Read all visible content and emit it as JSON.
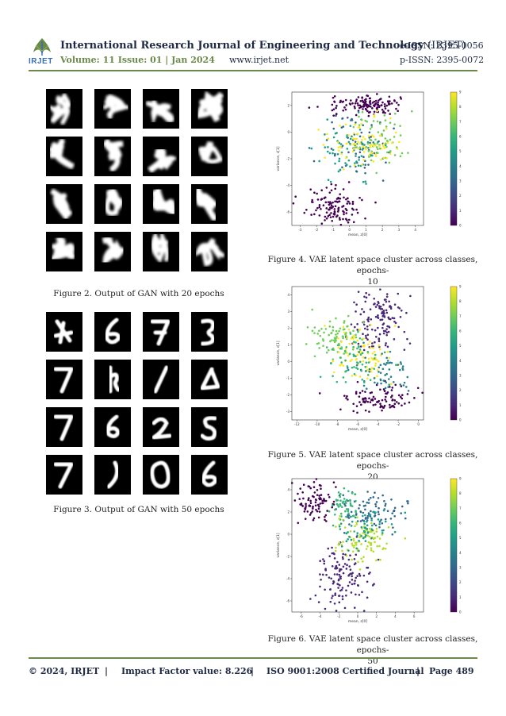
{
  "header": {
    "logo_text": "IRJET",
    "journal_title": "International Research Journal of Engineering and Technology",
    "journal_abbr": "(IRJET)",
    "eissn": "e-ISSN: 2395-0056",
    "volume": "Volume: 11 Issue: 01 | Jan 2024",
    "website": "www.irjet.net",
    "pissn": "p-ISSN: 2395-0072",
    "accent_color": "#6a8a4a"
  },
  "figures": {
    "fig2_caption": "Figure 2. Output of GAN with 20 epochs",
    "fig3_caption": "Figure 3. Output of GAN with 50 epochs",
    "fig4_caption_line1": "Figure 4. VAE latent space cluster across classes, epochs-",
    "fig4_caption_line2": "10",
    "fig5_caption_line1": "Figure 5. VAE latent space cluster across classes, epochs-",
    "fig5_caption_line2": "20",
    "fig6_caption_line1": "Figure 6. VAE latent space cluster across classes, epochs-",
    "fig6_caption_line2": "50"
  },
  "footer": {
    "copyright": "© 2024, IRJET",
    "sep1": "|",
    "impact": "Impact Factor value: 8.226",
    "sep2": "|",
    "iso": "ISO 9001:2008 Certified Journal",
    "sep3": "|",
    "page": "Page 489"
  },
  "chart_data": [
    {
      "type": "scatter",
      "title": "",
      "xlabel": "mean, z[0]",
      "ylabel": "variance, z[1]",
      "xlim": [
        -3.5,
        4.5
      ],
      "ylim": [
        -7,
        3
      ],
      "xticks": [
        -3,
        -2,
        -1,
        0,
        1,
        2,
        3,
        4
      ],
      "yticks": [
        -6,
        -4,
        -2,
        0,
        2
      ],
      "colorbar": {
        "min": 0,
        "max": 9,
        "ticks": [
          0,
          1,
          2,
          3,
          4,
          5,
          6,
          7,
          8,
          9
        ],
        "colormap": "viridis"
      },
      "clusters": [
        {
          "class": 0,
          "cx": 1.0,
          "cy": 2.0,
          "sx": 1.2,
          "sy": 0.35,
          "n": 140
        },
        {
          "class": 0,
          "cx": -1.0,
          "cy": -5.5,
          "sx": 0.9,
          "sy": 0.7,
          "n": 120
        },
        {
          "class": 3,
          "cx": 0.5,
          "cy": -1.0,
          "sx": 0.9,
          "sy": 1.1,
          "n": 70
        },
        {
          "class": 5,
          "cx": 0.0,
          "cy": -1.5,
          "sx": 0.9,
          "sy": 1.2,
          "n": 70
        },
        {
          "class": 7,
          "cx": 1.5,
          "cy": -0.5,
          "sx": 0.9,
          "sy": 1.0,
          "n": 70
        },
        {
          "class": 9,
          "cx": 1.0,
          "cy": -0.8,
          "sx": 1.0,
          "sy": 1.0,
          "n": 80
        }
      ]
    },
    {
      "type": "scatter",
      "title": "",
      "xlabel": "mean, z[0]",
      "ylabel": "variance, z[1]",
      "xlim": [
        -12.5,
        0.5
      ],
      "ylim": [
        -3.5,
        4.5
      ],
      "xticks": [
        -12,
        -10,
        -8,
        -6,
        -4,
        -2,
        0
      ],
      "yticks": [
        -3,
        -2,
        -1,
        0,
        1,
        2,
        3,
        4
      ],
      "colorbar": {
        "min": 0,
        "max": 9,
        "ticks": [
          0,
          1,
          2,
          3,
          4,
          5,
          6,
          7,
          8,
          9
        ],
        "colormap": "viridis"
      },
      "clusters": [
        {
          "class": 1,
          "cx": -4.0,
          "cy": 2.5,
          "sx": 1.3,
          "sy": 1.1,
          "n": 140
        },
        {
          "class": 0,
          "cx": -4.0,
          "cy": -2.3,
          "sx": 2.0,
          "sy": 0.4,
          "n": 100
        },
        {
          "class": 7,
          "cx": -8.5,
          "cy": 1.5,
          "sx": 1.3,
          "sy": 0.6,
          "n": 80
        },
        {
          "class": 9,
          "cx": -5.5,
          "cy": 0.5,
          "sx": 1.6,
          "sy": 0.8,
          "n": 90
        },
        {
          "class": 4,
          "cx": -3.5,
          "cy": -0.5,
          "sx": 1.5,
          "sy": 0.7,
          "n": 60
        },
        {
          "class": 6,
          "cx": -6.5,
          "cy": 0.0,
          "sx": 1.5,
          "sy": 0.7,
          "n": 60
        }
      ]
    },
    {
      "type": "scatter",
      "title": "",
      "xlabel": "mean, z[0]",
      "ylabel": "variance, z[1]",
      "xlim": [
        -7,
        7
      ],
      "ylim": [
        -7,
        5
      ],
      "xticks": [
        -6,
        -4,
        -2,
        0,
        2,
        4,
        6
      ],
      "yticks": [
        -6,
        -4,
        -2,
        0,
        2,
        4
      ],
      "colorbar": {
        "min": 0,
        "max": 9,
        "ticks": [
          0,
          1,
          2,
          3,
          4,
          5,
          6,
          7,
          8,
          9
        ],
        "colormap": "viridis"
      },
      "clusters": [
        {
          "class": 0,
          "cx": -4.5,
          "cy": 3.0,
          "sx": 1.0,
          "sy": 0.9,
          "n": 90
        },
        {
          "class": 1,
          "cx": -1.5,
          "cy": -4.0,
          "sx": 1.5,
          "sy": 1.4,
          "n": 130
        },
        {
          "class": 3,
          "cx": 1.5,
          "cy": 2.0,
          "sx": 1.8,
          "sy": 0.9,
          "n": 90
        },
        {
          "class": 6,
          "cx": -1.5,
          "cy": 2.5,
          "sx": 0.8,
          "sy": 0.7,
          "n": 50
        },
        {
          "class": 8,
          "cx": 0.5,
          "cy": -0.5,
          "sx": 1.6,
          "sy": 1.0,
          "n": 100
        },
        {
          "class": 5,
          "cx": 1.0,
          "cy": 0.5,
          "sx": 1.5,
          "sy": 0.8,
          "n": 60
        }
      ]
    }
  ]
}
